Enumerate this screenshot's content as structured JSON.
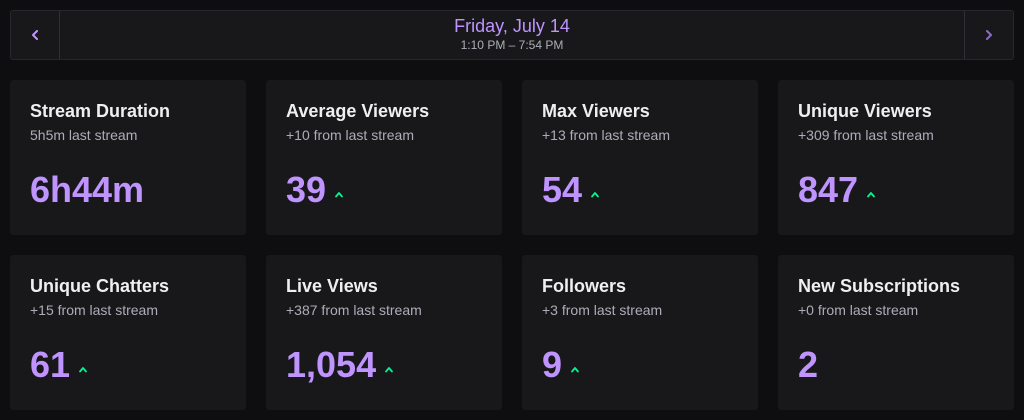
{
  "header": {
    "date": "Friday, July 14",
    "time_range": "1:10 PM – 7:54 PM",
    "prev_icon": "chevron-left-icon",
    "next_icon": "chevron-right-icon"
  },
  "colors": {
    "accent": "#bf94ff",
    "trend_up": "#00f593",
    "card_bg": "#18181b",
    "page_bg": "#0e0e10"
  },
  "stats": [
    {
      "title": "Stream Duration",
      "subtitle": "5h5m last stream",
      "value": "6h44m",
      "trend": "none"
    },
    {
      "title": "Average Viewers",
      "subtitle": "+10 from last stream",
      "value": "39",
      "trend": "up"
    },
    {
      "title": "Max Viewers",
      "subtitle": "+13 from last stream",
      "value": "54",
      "trend": "up"
    },
    {
      "title": "Unique Viewers",
      "subtitle": "+309 from last stream",
      "value": "847",
      "trend": "up"
    },
    {
      "title": "Unique Chatters",
      "subtitle": "+15 from last stream",
      "value": "61",
      "trend": "up"
    },
    {
      "title": "Live Views",
      "subtitle": "+387 from last stream",
      "value": "1,054",
      "trend": "up"
    },
    {
      "title": "Followers",
      "subtitle": "+3 from last stream",
      "value": "9",
      "trend": "up"
    },
    {
      "title": "New Subscriptions",
      "subtitle": "+0 from last stream",
      "value": "2",
      "trend": "none"
    }
  ]
}
